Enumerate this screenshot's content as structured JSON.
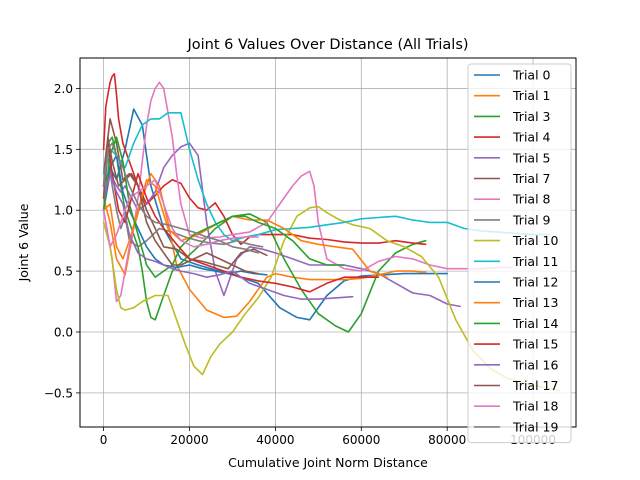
{
  "chart_data": {
    "type": "line",
    "title": "Joint 6 Values Over Distance (All Trials)",
    "xlabel": "Cumulative Joint Norm Distance",
    "ylabel": "Joint 6 Value",
    "xlim": [
      -5500,
      110000
    ],
    "ylim": [
      -0.78,
      2.25
    ],
    "xticks": [
      0,
      20000,
      40000,
      60000,
      80000,
      100000
    ],
    "xtick_labels": [
      "0",
      "20000",
      "40000",
      "60000",
      "80000",
      "100000"
    ],
    "yticks": [
      -0.5,
      0.0,
      0.5,
      1.0,
      1.5,
      2.0
    ],
    "ytick_labels": [
      "−0.5",
      "0.0",
      "0.5",
      "1.0",
      "1.5",
      "2.0"
    ],
    "grid": true,
    "legend_position": "top-right",
    "series": [
      {
        "name": "Trial 0",
        "color": "#1f77b4",
        "x": [
          0,
          1500,
          3000,
          5000,
          7000,
          9000,
          11000,
          14000,
          18000,
          22000,
          27000,
          31000,
          36000,
          41000,
          45000,
          48000,
          52000,
          56000,
          60000,
          65000,
          70000,
          75000,
          80000
        ],
        "y": [
          1.2,
          1.35,
          1.25,
          1.5,
          1.83,
          1.7,
          1.2,
          0.85,
          0.6,
          0.55,
          0.5,
          0.46,
          0.4,
          0.2,
          0.12,
          0.1,
          0.3,
          0.42,
          0.46,
          0.47,
          0.48,
          0.48,
          0.48
        ]
      },
      {
        "name": "Trial 1",
        "color": "#ff7f0e",
        "x": [
          0,
          1500,
          3000,
          5000,
          7000,
          9000,
          11000,
          13000,
          15000,
          17000,
          20000,
          24000,
          28000,
          31000,
          34000,
          36000,
          38000,
          40000,
          44000,
          48000,
          52000,
          56000,
          60000,
          64000,
          68000,
          72000,
          75000
        ],
        "y": [
          1.1,
          0.9,
          0.6,
          0.47,
          0.85,
          1.1,
          1.3,
          1.2,
          0.9,
          0.55,
          0.35,
          0.18,
          0.12,
          0.13,
          0.25,
          0.35,
          0.45,
          0.48,
          0.45,
          0.43,
          0.43,
          0.43,
          0.44,
          0.47,
          0.5,
          0.5,
          0.49
        ]
      },
      {
        "name": "Trial 3",
        "color": "#2ca02c",
        "x": [
          0,
          1000,
          2000,
          3000,
          4000,
          5000,
          6000,
          7000,
          8000,
          9000,
          10000,
          11000,
          12000,
          14000,
          16000,
          19000,
          22000,
          26000,
          30000,
          34000,
          38000,
          42000,
          46000,
          50000,
          54000,
          57000,
          60000,
          64000,
          68000,
          72000,
          75000
        ],
        "y": [
          1.2,
          1.55,
          1.6,
          1.45,
          1.2,
          1.0,
          0.9,
          0.8,
          0.7,
          0.5,
          0.25,
          0.12,
          0.1,
          0.3,
          0.5,
          0.6,
          0.7,
          0.85,
          0.95,
          0.97,
          0.9,
          0.6,
          0.35,
          0.15,
          0.05,
          0.0,
          0.15,
          0.5,
          0.65,
          0.72,
          0.75
        ]
      },
      {
        "name": "Trial 4",
        "color": "#d62728",
        "x": [
          0,
          500,
          1000,
          1500,
          2000,
          2500,
          3000,
          3500,
          4500,
          6000,
          8000,
          10000,
          12000,
          14000,
          16000,
          18000,
          20000,
          22000,
          24000,
          26000,
          28000,
          30000,
          32000,
          34000,
          36000,
          40000,
          44000,
          48000,
          52000,
          56000,
          60000,
          64000,
          68000,
          72000,
          75000
        ],
        "y": [
          1.5,
          1.85,
          1.95,
          2.05,
          2.1,
          2.12,
          1.95,
          1.75,
          1.55,
          1.4,
          1.2,
          1.05,
          1.12,
          1.2,
          1.25,
          1.22,
          1.1,
          1.02,
          1.0,
          1.06,
          0.95,
          0.8,
          0.72,
          0.78,
          0.8,
          0.8,
          0.8,
          0.77,
          0.76,
          0.74,
          0.73,
          0.73,
          0.75,
          0.73,
          0.72
        ]
      },
      {
        "name": "Trial 5",
        "color": "#9467bd",
        "x": [
          0,
          1500,
          3000,
          4000,
          5000,
          6500,
          8000,
          10000,
          12000,
          14000,
          16000,
          18000,
          20000,
          22000,
          24000,
          26000,
          28000,
          31000,
          34000,
          37000,
          40000,
          44000,
          48000,
          52000,
          56000,
          60000,
          64000,
          68000,
          72000,
          76000,
          80000,
          83000
        ],
        "y": [
          1.0,
          1.3,
          1.2,
          1.15,
          1.2,
          1.1,
          1.0,
          1.05,
          1.15,
          1.35,
          1.45,
          1.52,
          1.55,
          1.45,
          0.9,
          0.5,
          0.3,
          0.6,
          0.7,
          0.68,
          0.65,
          0.6,
          0.55,
          0.55,
          0.55,
          0.52,
          0.48,
          0.4,
          0.32,
          0.3,
          0.23,
          0.21
        ]
      },
      {
        "name": "Trial 7",
        "color": "#8c564b",
        "x": [
          0,
          1500,
          3000,
          4500,
          6000,
          8000,
          10000,
          12000,
          14000,
          17000,
          20000,
          23000,
          26000,
          29000,
          32000,
          35000,
          38000
        ],
        "y": [
          1.3,
          1.75,
          1.55,
          1.25,
          1.3,
          1.2,
          1.0,
          0.85,
          0.7,
          0.68,
          0.6,
          0.58,
          0.55,
          0.52,
          0.65,
          0.68,
          0.63
        ]
      },
      {
        "name": "Trial 8",
        "color": "#e377c2",
        "x": [
          0,
          1000,
          2000,
          3000,
          4000,
          5000,
          6000,
          7000,
          8000,
          9000,
          10000,
          11000,
          12000,
          13000,
          14000,
          15000,
          16000,
          17000,
          18000,
          20000,
          23000,
          27000,
          30000,
          34000,
          38000,
          42000,
          44000,
          46000,
          48000,
          49000,
          50000,
          52000,
          56000,
          60000,
          64000,
          68000,
          72000,
          76000,
          80000,
          84000,
          88000,
          92000,
          95000
        ],
        "y": [
          1.0,
          0.8,
          0.6,
          0.25,
          0.3,
          0.5,
          0.7,
          0.85,
          1.1,
          1.4,
          1.7,
          1.9,
          2.0,
          2.05,
          2.0,
          1.8,
          1.6,
          1.3,
          1.05,
          0.8,
          0.77,
          0.78,
          0.8,
          0.82,
          0.9,
          1.1,
          1.2,
          1.28,
          1.32,
          1.2,
          0.9,
          0.6,
          0.52,
          0.5,
          0.58,
          0.62,
          0.6,
          0.55,
          0.52,
          0.52,
          0.52,
          0.53,
          0.53
        ]
      },
      {
        "name": "Trial 9",
        "color": "#7f7f7f",
        "x": [
          0,
          1000,
          2000,
          3000,
          4000,
          5000,
          6000,
          8000,
          10000,
          13000,
          16000,
          19000,
          22000,
          25000,
          28000,
          31000,
          34000,
          37000
        ],
        "y": [
          1.1,
          1.45,
          1.2,
          1.0,
          0.85,
          0.95,
          0.75,
          0.7,
          0.75,
          0.85,
          0.82,
          0.78,
          0.75,
          0.73,
          0.72,
          0.75,
          0.72,
          0.7
        ]
      },
      {
        "name": "Trial 10",
        "color": "#bcbd22",
        "x": [
          0,
          1500,
          3000,
          4000,
          5000,
          7000,
          9000,
          12000,
          15000,
          17000,
          19000,
          21000,
          23000,
          25000,
          27000,
          30000,
          33000,
          36000,
          39000,
          42000,
          45000,
          48000,
          50000,
          52000,
          55000,
          58000,
          62000,
          66000,
          70000,
          74000,
          78000,
          82000,
          86000,
          90000,
          94000,
          98000,
          102000,
          106000
        ],
        "y": [
          0.9,
          0.7,
          0.35,
          0.2,
          0.18,
          0.2,
          0.25,
          0.3,
          0.3,
          0.1,
          -0.1,
          -0.28,
          -0.35,
          -0.2,
          -0.1,
          0.0,
          0.15,
          0.28,
          0.45,
          0.75,
          0.95,
          1.02,
          1.03,
          0.98,
          0.92,
          0.88,
          0.85,
          0.75,
          0.7,
          0.62,
          0.45,
          0.1,
          -0.15,
          -0.3,
          -0.38,
          -0.42,
          -0.45,
          -0.48
        ]
      },
      {
        "name": "Trial 11",
        "color": "#17becf",
        "x": [
          0,
          1500,
          3000,
          5000,
          7000,
          9000,
          11000,
          13000,
          15000,
          18000,
          20000,
          22000,
          24000,
          26000,
          28000,
          30000,
          33000,
          36000,
          40000,
          44000,
          48000,
          52000,
          56000,
          60000,
          64000,
          68000,
          72000,
          76000,
          80000,
          84000,
          88000,
          92000,
          96000,
          100000,
          104000
        ],
        "y": [
          1.3,
          1.5,
          1.45,
          1.35,
          1.55,
          1.7,
          1.75,
          1.75,
          1.8,
          1.8,
          1.5,
          1.25,
          1.05,
          0.9,
          0.8,
          0.75,
          0.78,
          0.8,
          0.84,
          0.85,
          0.86,
          0.88,
          0.9,
          0.93,
          0.94,
          0.95,
          0.92,
          0.9,
          0.9,
          0.85,
          0.83,
          0.82,
          0.81,
          0.8,
          0.8
        ]
      },
      {
        "name": "Trial 12",
        "color": "#1f77b4",
        "x": [
          0,
          1500,
          3000,
          4500,
          6000,
          8000,
          10000,
          12000,
          14000,
          17000,
          20000,
          23000,
          26000,
          29000,
          32000,
          35000,
          38000
        ],
        "y": [
          1.0,
          1.35,
          1.45,
          1.15,
          1.0,
          0.85,
          0.7,
          0.6,
          0.55,
          0.53,
          0.55,
          0.52,
          0.5,
          0.48,
          0.5,
          0.48,
          0.47
        ]
      },
      {
        "name": "Trial 13",
        "color": "#ff7f0e",
        "x": [
          0,
          1500,
          3000,
          4500,
          6000,
          8000,
          10000,
          12000,
          15000,
          18000,
          22000,
          26000,
          30000,
          34000,
          38000,
          42000,
          46000,
          50000,
          54000,
          58000,
          62000,
          66000
        ],
        "y": [
          1.0,
          1.05,
          0.7,
          0.6,
          0.75,
          1.0,
          1.25,
          1.2,
          0.85,
          0.75,
          0.8,
          0.88,
          0.95,
          0.92,
          0.92,
          0.85,
          0.75,
          0.72,
          0.7,
          0.68,
          0.5,
          0.45
        ]
      },
      {
        "name": "Trial 14",
        "color": "#2ca02c",
        "x": [
          0,
          1500,
          3000,
          4500,
          6000,
          8000,
          10000,
          12000,
          14000,
          16000,
          18000,
          21000,
          24000,
          27000,
          30000,
          33000,
          36000,
          40000,
          44000,
          48000,
          52000,
          56000
        ],
        "y": [
          1.0,
          1.45,
          1.6,
          1.4,
          1.05,
          0.8,
          0.55,
          0.45,
          0.5,
          0.55,
          0.7,
          0.8,
          0.85,
          0.9,
          0.95,
          0.95,
          0.9,
          0.85,
          0.75,
          0.6,
          0.55,
          0.55
        ]
      },
      {
        "name": "Trial 15",
        "color": "#d62728",
        "x": [
          0,
          1000,
          2000,
          3500,
          5000,
          6500,
          8000,
          10000,
          12000,
          14000,
          17000,
          20000,
          24000,
          28000,
          32000,
          36000,
          40000,
          44000,
          48000,
          52000,
          56000,
          60000,
          64000
        ],
        "y": [
          1.2,
          1.55,
          1.3,
          1.0,
          0.9,
          1.1,
          1.3,
          1.1,
          0.95,
          0.85,
          0.72,
          0.6,
          0.55,
          0.5,
          0.45,
          0.42,
          0.4,
          0.37,
          0.33,
          0.4,
          0.45,
          0.45,
          0.45
        ]
      },
      {
        "name": "Trial 16",
        "color": "#9467bd",
        "x": [
          0,
          1500,
          3000,
          4500,
          6000,
          8000,
          10000,
          12000,
          14000,
          16000,
          18000,
          21000,
          24000,
          27000,
          30000,
          34000,
          38000,
          42000,
          46000,
          50000,
          54000,
          58000
        ],
        "y": [
          1.1,
          1.3,
          1.15,
          1.05,
          0.8,
          0.65,
          0.6,
          0.58,
          0.55,
          0.52,
          0.5,
          0.48,
          0.45,
          0.47,
          0.5,
          0.4,
          0.35,
          0.3,
          0.27,
          0.27,
          0.28,
          0.29
        ]
      },
      {
        "name": "Trial 17",
        "color": "#8c564b",
        "x": [
          0,
          1000,
          2000,
          3500,
          5000,
          6500,
          8000,
          10000,
          12000,
          14000,
          16000,
          18000,
          21000,
          24000,
          27000,
          30000,
          33000,
          36000
        ],
        "y": [
          1.1,
          1.6,
          1.4,
          1.2,
          1.25,
          1.3,
          1.2,
          0.9,
          0.75,
          0.65,
          0.55,
          0.55,
          0.6,
          0.65,
          0.6,
          0.55,
          0.5,
          0.48
        ]
      },
      {
        "name": "Trial 18",
        "color": "#e377c2",
        "x": [
          0,
          1500,
          3000,
          4500,
          6000,
          8000,
          10000,
          12000,
          14000,
          16000,
          18000,
          21000,
          24000,
          27000,
          30000,
          33000,
          36000
        ],
        "y": [
          1.0,
          0.7,
          0.8,
          0.95,
          1.1,
          1.15,
          1.2,
          1.25,
          1.05,
          0.85,
          0.75,
          0.7,
          0.72,
          0.75,
          0.77,
          0.78,
          0.78
        ]
      },
      {
        "name": "Trial 19",
        "color": "#7f7f7f",
        "x": [
          0,
          1000,
          2000,
          3000,
          4500,
          6000,
          8000,
          10000,
          12000,
          15000,
          18000,
          21000,
          24000,
          27000,
          30000,
          33000,
          36000
        ],
        "y": [
          1.2,
          1.5,
          1.55,
          1.45,
          1.35,
          1.2,
          1.05,
          0.95,
          0.9,
          0.88,
          0.85,
          0.82,
          0.78,
          0.75,
          0.7,
          0.68,
          0.65
        ]
      }
    ]
  }
}
